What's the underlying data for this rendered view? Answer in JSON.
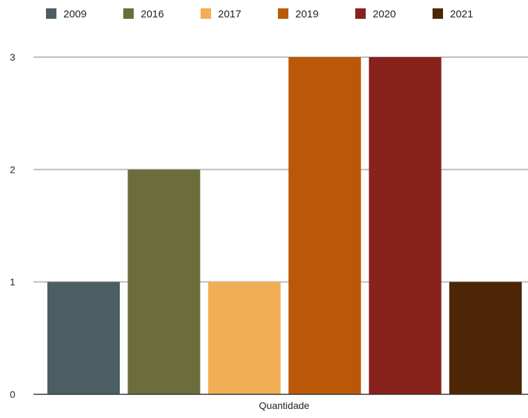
{
  "chart_data": {
    "type": "bar",
    "categories": [
      "Quantidade"
    ],
    "series": [
      {
        "name": "2009",
        "values": [
          1
        ],
        "color": "#4b5f63"
      },
      {
        "name": "2016",
        "values": [
          2
        ],
        "color": "#6b6e3c"
      },
      {
        "name": "2017",
        "values": [
          1
        ],
        "color": "#f2ae55"
      },
      {
        "name": "2019",
        "values": [
          3
        ],
        "color": "#bb5808"
      },
      {
        "name": "2020",
        "values": [
          3
        ],
        "color": "#88221c"
      },
      {
        "name": "2021",
        "values": [
          1
        ],
        "color": "#4d2705"
      }
    ],
    "yticks": [
      "0",
      "1",
      "2",
      "3"
    ],
    "ylim": [
      0,
      3
    ],
    "grid": true,
    "legend_position": "top-left"
  },
  "colors": {
    "gridline": "#bcbcbc",
    "baseline": "#333333"
  }
}
